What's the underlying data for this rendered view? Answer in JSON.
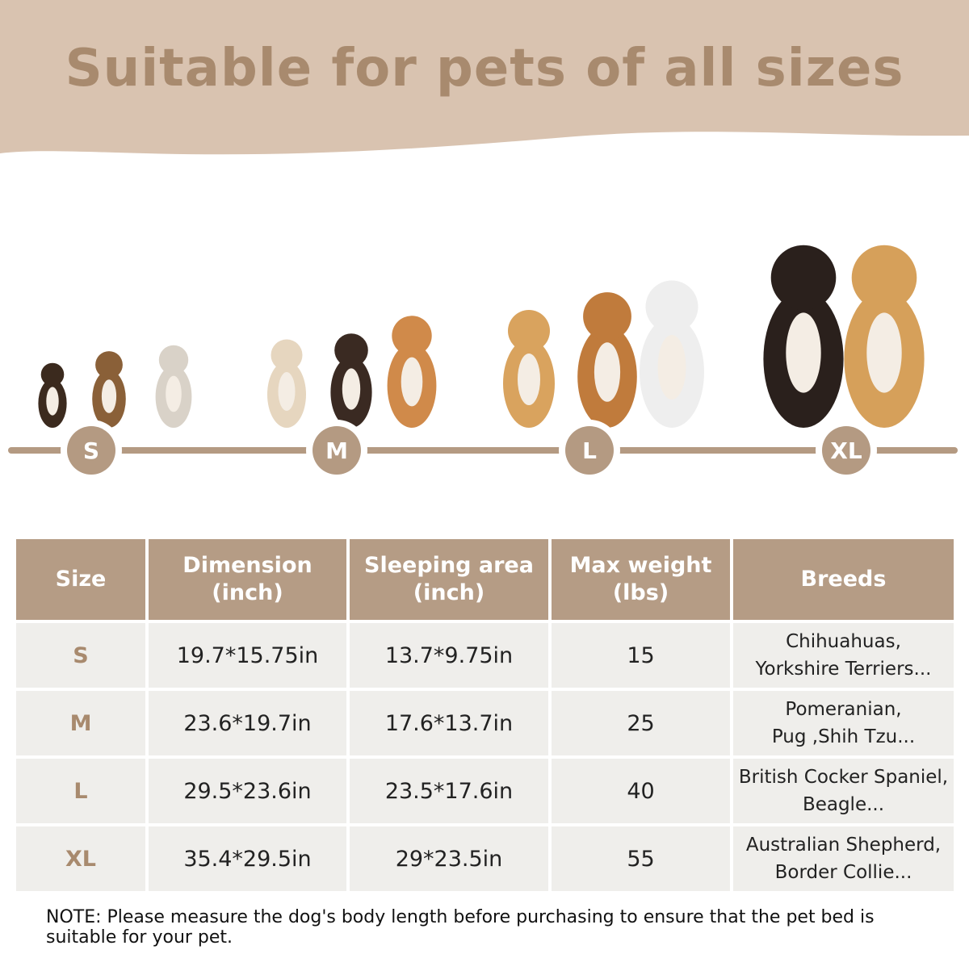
{
  "header": {
    "title": "Suitable for pets of all sizes"
  },
  "size_scale": [
    "S",
    "M",
    "L",
    "XL"
  ],
  "table": {
    "header": [
      [
        "Size"
      ],
      [
        "Dimension",
        "(inch)"
      ],
      [
        "Sleeping area",
        "(inch)"
      ],
      [
        "Max weight",
        "(lbs)"
      ],
      [
        "Breeds"
      ]
    ],
    "rows": [
      [
        "S",
        "19.7*15.75in",
        "13.7*9.75in",
        "15",
        [
          "Chihuahuas,",
          "Yorkshire Terriers..."
        ]
      ],
      [
        "M",
        "23.6*19.7in",
        "17.6*13.7in",
        "25",
        [
          "Pomeranian,",
          "Pug ,Shih Tzu..."
        ]
      ],
      [
        "L",
        "29.5*23.6in",
        "23.5*17.6in",
        "40",
        [
          "British Cocker Spaniel,",
          "Beagle..."
        ]
      ],
      [
        "XL",
        "35.4*29.5in",
        "29*23.5in",
        "55",
        [
          "Australian Shepherd,",
          "Border Collie..."
        ]
      ]
    ]
  },
  "note": "NOTE: Please measure the dog's body length before purchasing to ensure that the pet bed is suitable for your pet."
}
